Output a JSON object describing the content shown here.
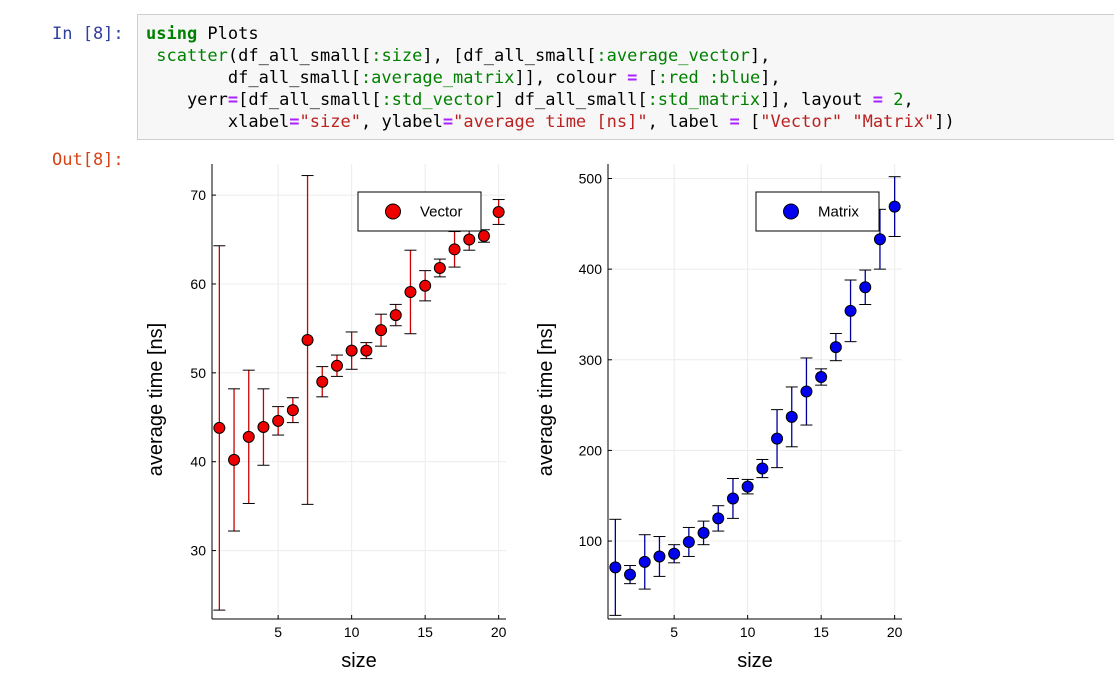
{
  "prompts": {
    "in": "In [8]:",
    "out": "Out[8]:"
  },
  "code": {
    "line1": {
      "kw": "using",
      "rest": " Plots"
    },
    "line2": {
      "indent": " ",
      "fn": "scatter",
      "p1": "(df_all_small[",
      "sym1": ":size",
      "p2": "], [df_all_small[",
      "sym2": ":average_vector",
      "p3": "],"
    },
    "line3": {
      "indent": "        df_all_small[",
      "sym1": ":average_matrix",
      "p1": "]], colour ",
      "op1": "=",
      "p2": " [",
      "sym2": ":red",
      "p3": " ",
      "sym3": ":blue",
      "p4": "],"
    },
    "line4": {
      "indent": "    yerr",
      "op1": "=",
      "p1": "[df_all_small[",
      "sym1": ":std_vector",
      "p2": "] df_all_small[",
      "sym2": ":std_matrix",
      "p3": "]], layout ",
      "op2": "=",
      "p4": " ",
      "num1": "2",
      "p5": ","
    },
    "line5": {
      "indent": "        xlabel",
      "op1": "=",
      "str1": "\"size\"",
      "p1": ", ylabel",
      "op2": "=",
      "str2": "\"average time [ns]\"",
      "p2": ", label ",
      "op3": "=",
      "p3": " [",
      "str3": "\"Vector\"",
      "p4": " ",
      "str4": "\"Matrix\"",
      "p5": "])"
    }
  },
  "colors": {
    "vector": "#ee0000",
    "matrix": "#0000ee",
    "errbar_vector": "#cc0000",
    "errbar_matrix": "#000099"
  },
  "chart_data": [
    {
      "type": "scatter",
      "xlabel": "size",
      "ylabel": "average time [ns]",
      "legend": "top-right",
      "grid": true,
      "xlim": [
        0.5,
        20.5
      ],
      "ylim": [
        22.3,
        73.5
      ],
      "xticks": [
        5,
        10,
        15,
        20
      ],
      "yticks": [
        30,
        40,
        50,
        60,
        70
      ],
      "series": [
        {
          "name": "Vector",
          "x": [
            1,
            2,
            3,
            4,
            5,
            6,
            7,
            8,
            9,
            10,
            11,
            12,
            13,
            14,
            15,
            16,
            17,
            18,
            19,
            20
          ],
          "y": [
            43.8,
            40.2,
            42.8,
            43.9,
            44.6,
            45.8,
            53.7,
            49.0,
            50.8,
            52.5,
            52.5,
            54.8,
            56.5,
            59.1,
            59.8,
            61.8,
            63.9,
            65.0,
            65.4,
            68.1
          ],
          "err": [
            20.5,
            8.0,
            7.5,
            4.3,
            1.6,
            1.4,
            18.5,
            1.7,
            1.2,
            2.1,
            0.9,
            1.8,
            1.2,
            4.7,
            1.7,
            1.0,
            2.0,
            1.2,
            0.7,
            1.4
          ]
        }
      ]
    },
    {
      "type": "scatter",
      "xlabel": "size",
      "ylabel": "average time [ns]",
      "legend": "top-right",
      "grid": true,
      "xlim": [
        0.5,
        20.5
      ],
      "ylim": [
        14,
        516
      ],
      "xticks": [
        5,
        10,
        15,
        20
      ],
      "yticks": [
        100,
        200,
        300,
        400,
        500
      ],
      "series": [
        {
          "name": "Matrix",
          "x": [
            1,
            2,
            3,
            4,
            5,
            6,
            7,
            8,
            9,
            10,
            11,
            12,
            13,
            14,
            15,
            16,
            17,
            18,
            19,
            20
          ],
          "y": [
            71,
            63,
            77,
            83,
            86,
            99,
            109,
            125,
            147,
            160,
            180,
            213,
            237,
            265,
            281,
            314,
            354,
            380,
            433,
            469
          ],
          "err": [
            53,
            10,
            30,
            22,
            10,
            16,
            13,
            14,
            22,
            8,
            10,
            32,
            33,
            37,
            9,
            15,
            34,
            19,
            33,
            33
          ]
        }
      ]
    }
  ]
}
